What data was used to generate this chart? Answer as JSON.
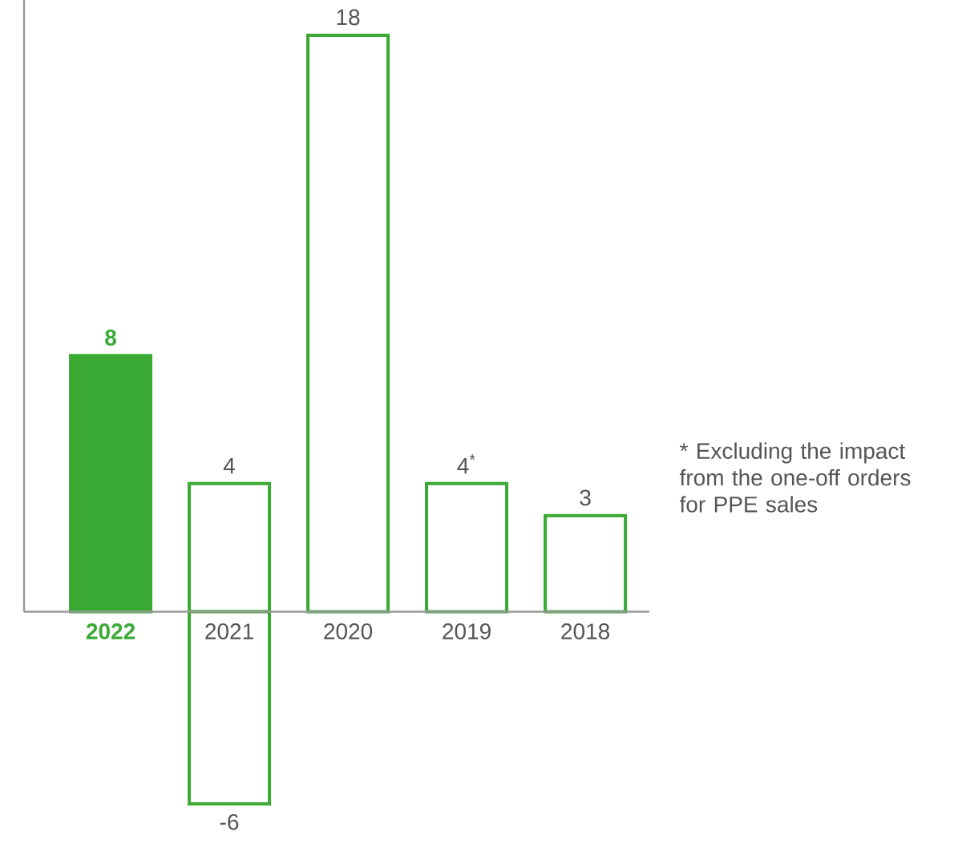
{
  "chart_data": {
    "type": "bar",
    "categories": [
      "**2022**",
      "2021",
      "2020",
      "2019",
      "2018"
    ],
    "series": [
      {
        "color": "#3aaa35",
        "colors": [
          "#3aaa35",
          "#ffffff",
          "#ffffff",
          "#ffffff",
          "#ffffff"
        ],
        "values": [
          8,
          4,
          18,
          4,
          3
        ],
        "value_labels": [
          "**8**",
          "4",
          "18",
          "4$^{*}$",
          "3"
        ]
      },
      {
        "color": "#3aaa35",
        "colors": [
          null,
          "#ffffff",
          null,
          null,
          null
        ],
        "values": [
          null,
          -6,
          null,
          null,
          null
        ],
        "value_labels": [
          null,
          "-6",
          null,
          null,
          null
        ]
      }
    ],
    "annotations": [
      "* Excluding the impact from the one-off orders for PPE sales"
    ]
  }
}
